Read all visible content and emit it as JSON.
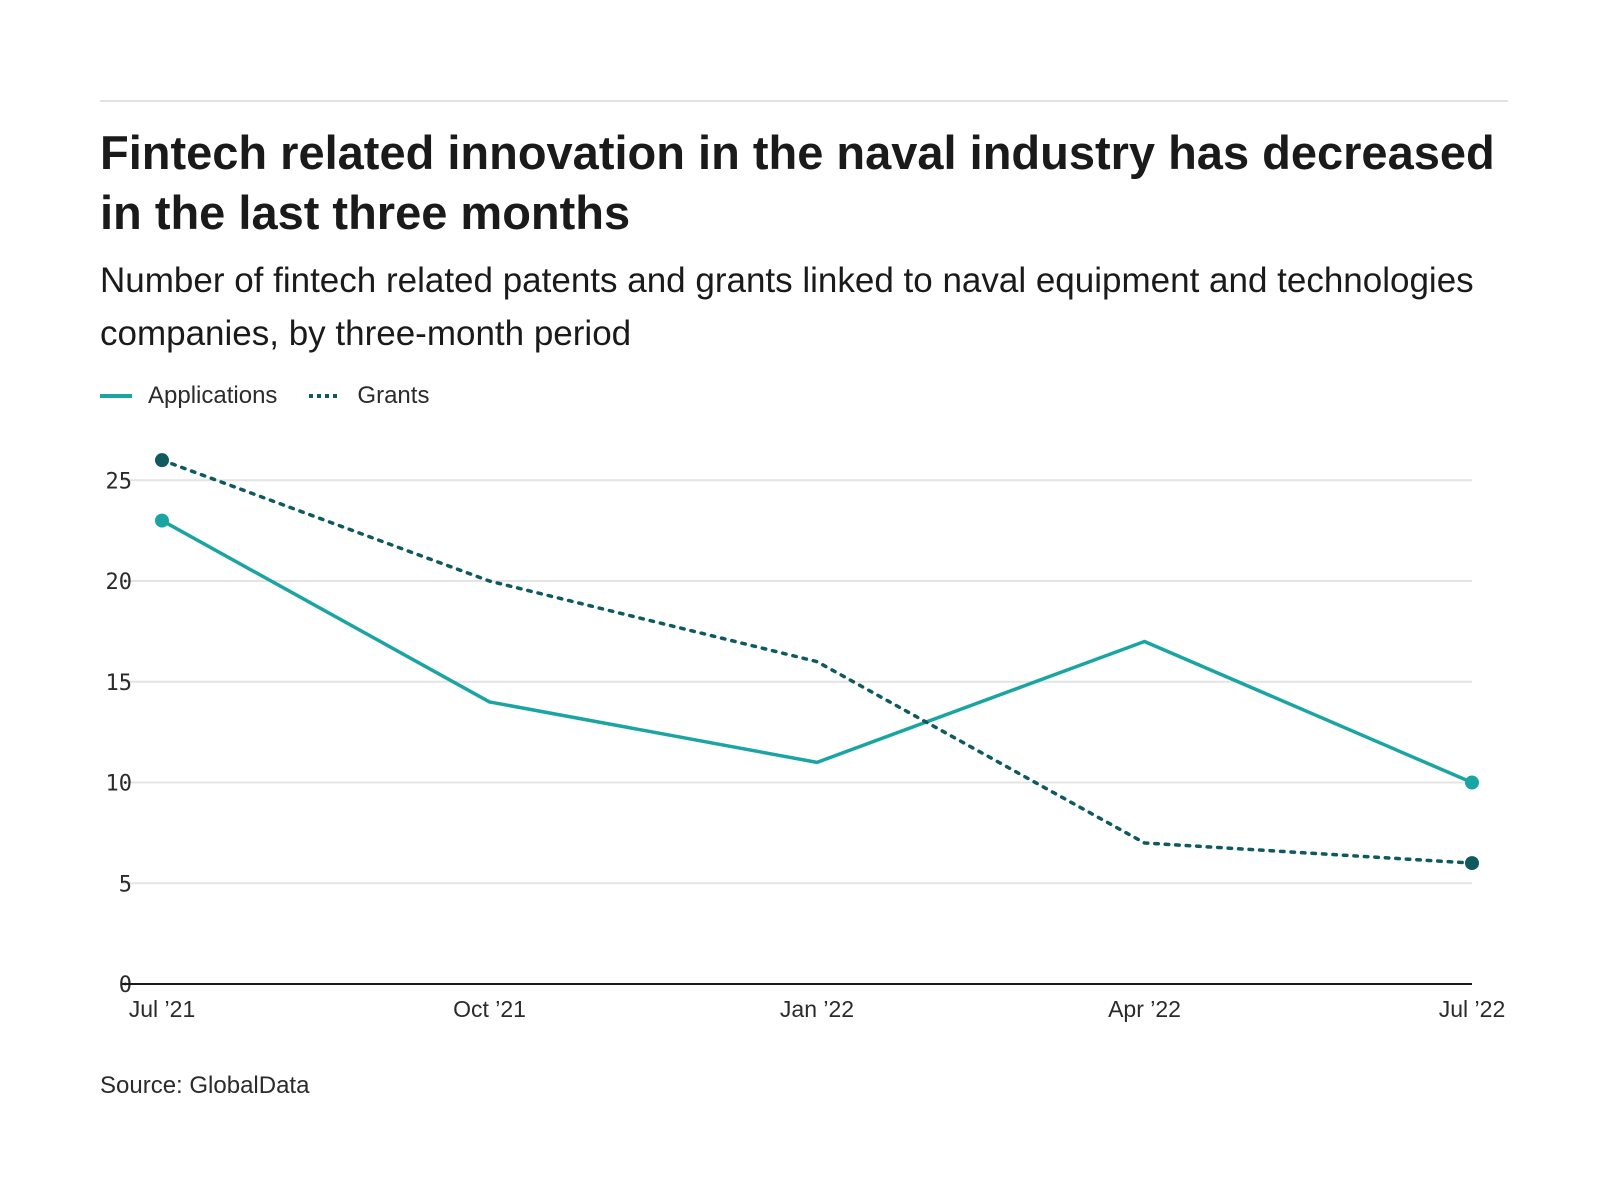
{
  "header": {
    "title": "Fintech related innovation in the naval industry has decreased in the last three months",
    "subtitle": "Number of fintech related patents and grants linked to naval equipment and technologies companies, by three-month period"
  },
  "legend": {
    "items": [
      {
        "label": "Applications",
        "style": "solid",
        "color": "#1aa5a3"
      },
      {
        "label": "Grants",
        "style": "dotted",
        "color": "#0e5a5e"
      }
    ]
  },
  "footer": {
    "source": "Source: GlobalData"
  },
  "chart_data": {
    "type": "line",
    "title": "Fintech related innovation in the naval industry has decreased in the last three months",
    "subtitle": "Number of fintech related patents and grants linked to naval equipment and technologies companies, by three-month period",
    "xlabel": "",
    "ylabel": "",
    "x": [
      "Jul 2021",
      "Oct 2021",
      "Jan 2022",
      "Apr 2022",
      "Jul 2022"
    ],
    "x_tick_labels": [
      "Jul ’21",
      "Oct ’21",
      "Jan ’22",
      "Apr ’22",
      "Jul ’22"
    ],
    "ylim": [
      0,
      27
    ],
    "y_ticks": [
      0,
      5,
      10,
      15,
      20,
      25
    ],
    "grid": true,
    "legend_position": "top-left",
    "series": [
      {
        "name": "Applications",
        "values": [
          23,
          14,
          11,
          17,
          10
        ],
        "color": "#1aa5a3",
        "style": "solid"
      },
      {
        "name": "Grants",
        "values": [
          26,
          20,
          16,
          7,
          6
        ],
        "color": "#0e5a5e",
        "style": "dotted"
      }
    ]
  }
}
